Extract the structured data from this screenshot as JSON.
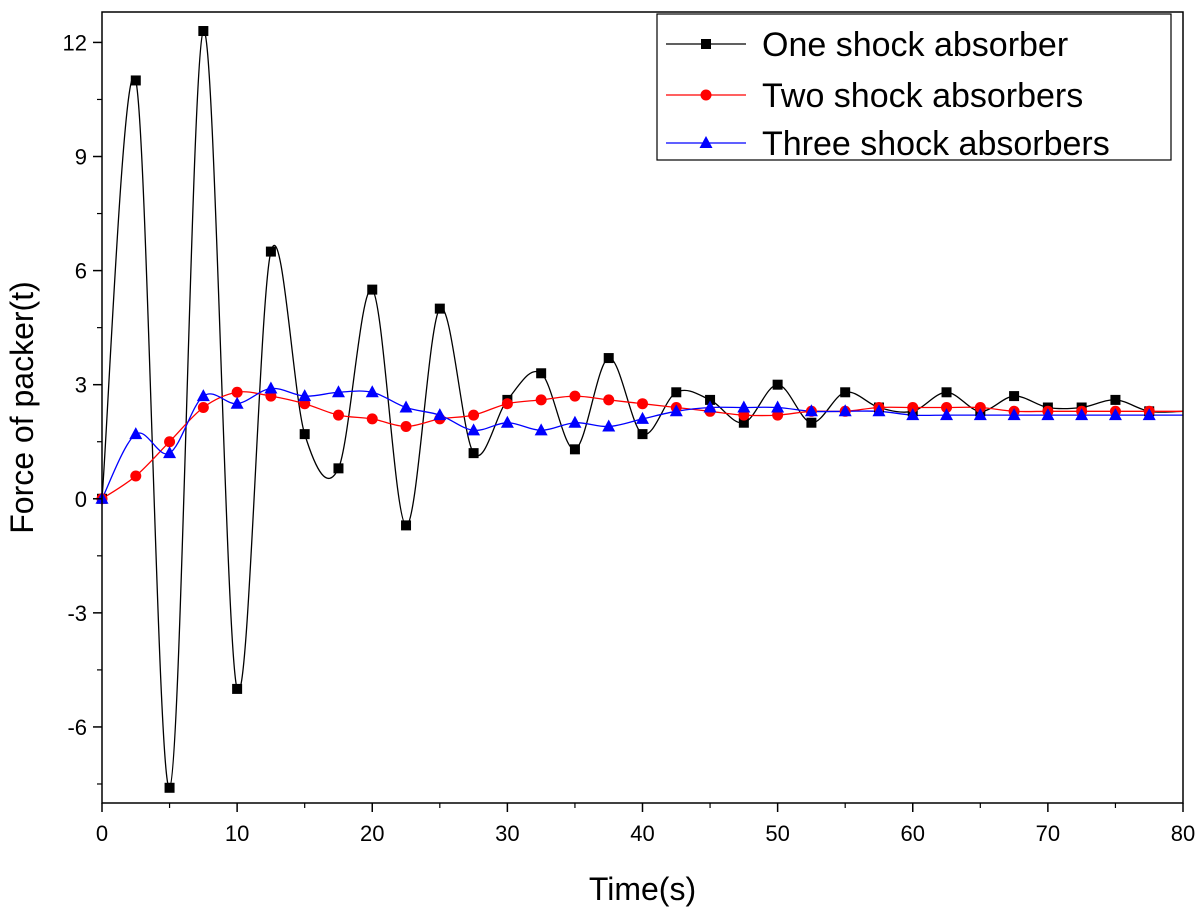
{
  "chart_data": {
    "type": "line",
    "title": "",
    "xlabel": "Time(s)",
    "ylabel": "Force of packer(t)",
    "xlim": [
      0,
      80
    ],
    "ylim": [
      -8,
      12.8
    ],
    "xticks": [
      0,
      10,
      20,
      30,
      40,
      50,
      60,
      70,
      80
    ],
    "yticks": [
      -6,
      -3,
      0,
      3,
      6,
      9,
      12
    ],
    "xtick_labels": [
      "0",
      "10",
      "20",
      "30",
      "40",
      "50",
      "60",
      "70",
      "80"
    ],
    "ytick_labels": [
      "-6",
      "-3",
      "0",
      "3",
      "6",
      "9",
      "12"
    ],
    "grid": false,
    "legend_position": "top-right",
    "series": [
      {
        "name": "One shock absorber",
        "color": "#000000",
        "marker": "square",
        "x": [
          0,
          2.5,
          5,
          7.5,
          10,
          12.5,
          15,
          17.5,
          20,
          22.5,
          25,
          27.5,
          30,
          32.5,
          35,
          37.5,
          40,
          42.5,
          45,
          47.5,
          50,
          52.5,
          55,
          57.5,
          60,
          62.5,
          65,
          67.5,
          70,
          72.5,
          75,
          77.5
        ],
        "y": [
          0,
          11.0,
          -7.6,
          12.3,
          -5.0,
          6.5,
          1.7,
          0.8,
          5.5,
          -0.7,
          5.0,
          1.2,
          2.6,
          3.3,
          1.3,
          3.7,
          1.7,
          2.8,
          2.6,
          2.0,
          3.0,
          2.0,
          2.8,
          2.4,
          2.3,
          2.8,
          2.3,
          2.7,
          2.4,
          2.4,
          2.6,
          2.3
        ]
      },
      {
        "name": "Two shock absorbers",
        "color": "#ff0000",
        "marker": "circle",
        "x": [
          0,
          2.5,
          5,
          7.5,
          10,
          12.5,
          15,
          17.5,
          20,
          22.5,
          25,
          27.5,
          30,
          32.5,
          35,
          37.5,
          40,
          42.5,
          45,
          47.5,
          50,
          52.5,
          55,
          57.5,
          60,
          62.5,
          65,
          67.5,
          70,
          72.5,
          75,
          77.5
        ],
        "y": [
          0,
          0.6,
          1.5,
          2.4,
          2.8,
          2.7,
          2.5,
          2.2,
          2.1,
          1.9,
          2.1,
          2.2,
          2.5,
          2.6,
          2.7,
          2.6,
          2.5,
          2.4,
          2.3,
          2.2,
          2.2,
          2.3,
          2.3,
          2.4,
          2.4,
          2.4,
          2.4,
          2.3,
          2.3,
          2.3,
          2.3,
          2.3
        ]
      },
      {
        "name": "Three shock absorbers",
        "color": "#0000ff",
        "marker": "triangle",
        "x": [
          0,
          2.5,
          5,
          7.5,
          10,
          12.5,
          15,
          17.5,
          20,
          22.5,
          25,
          27.5,
          30,
          32.5,
          35,
          37.5,
          40,
          42.5,
          45,
          47.5,
          50,
          52.5,
          55,
          57.5,
          60,
          62.5,
          65,
          67.5,
          70,
          72.5,
          75,
          77.5
        ],
        "y": [
          0,
          1.7,
          1.2,
          2.7,
          2.5,
          2.9,
          2.7,
          2.8,
          2.8,
          2.4,
          2.2,
          1.8,
          2.0,
          1.8,
          2.0,
          1.9,
          2.1,
          2.3,
          2.4,
          2.4,
          2.4,
          2.3,
          2.3,
          2.3,
          2.2,
          2.2,
          2.2,
          2.2,
          2.2,
          2.2,
          2.2,
          2.2
        ]
      }
    ]
  }
}
